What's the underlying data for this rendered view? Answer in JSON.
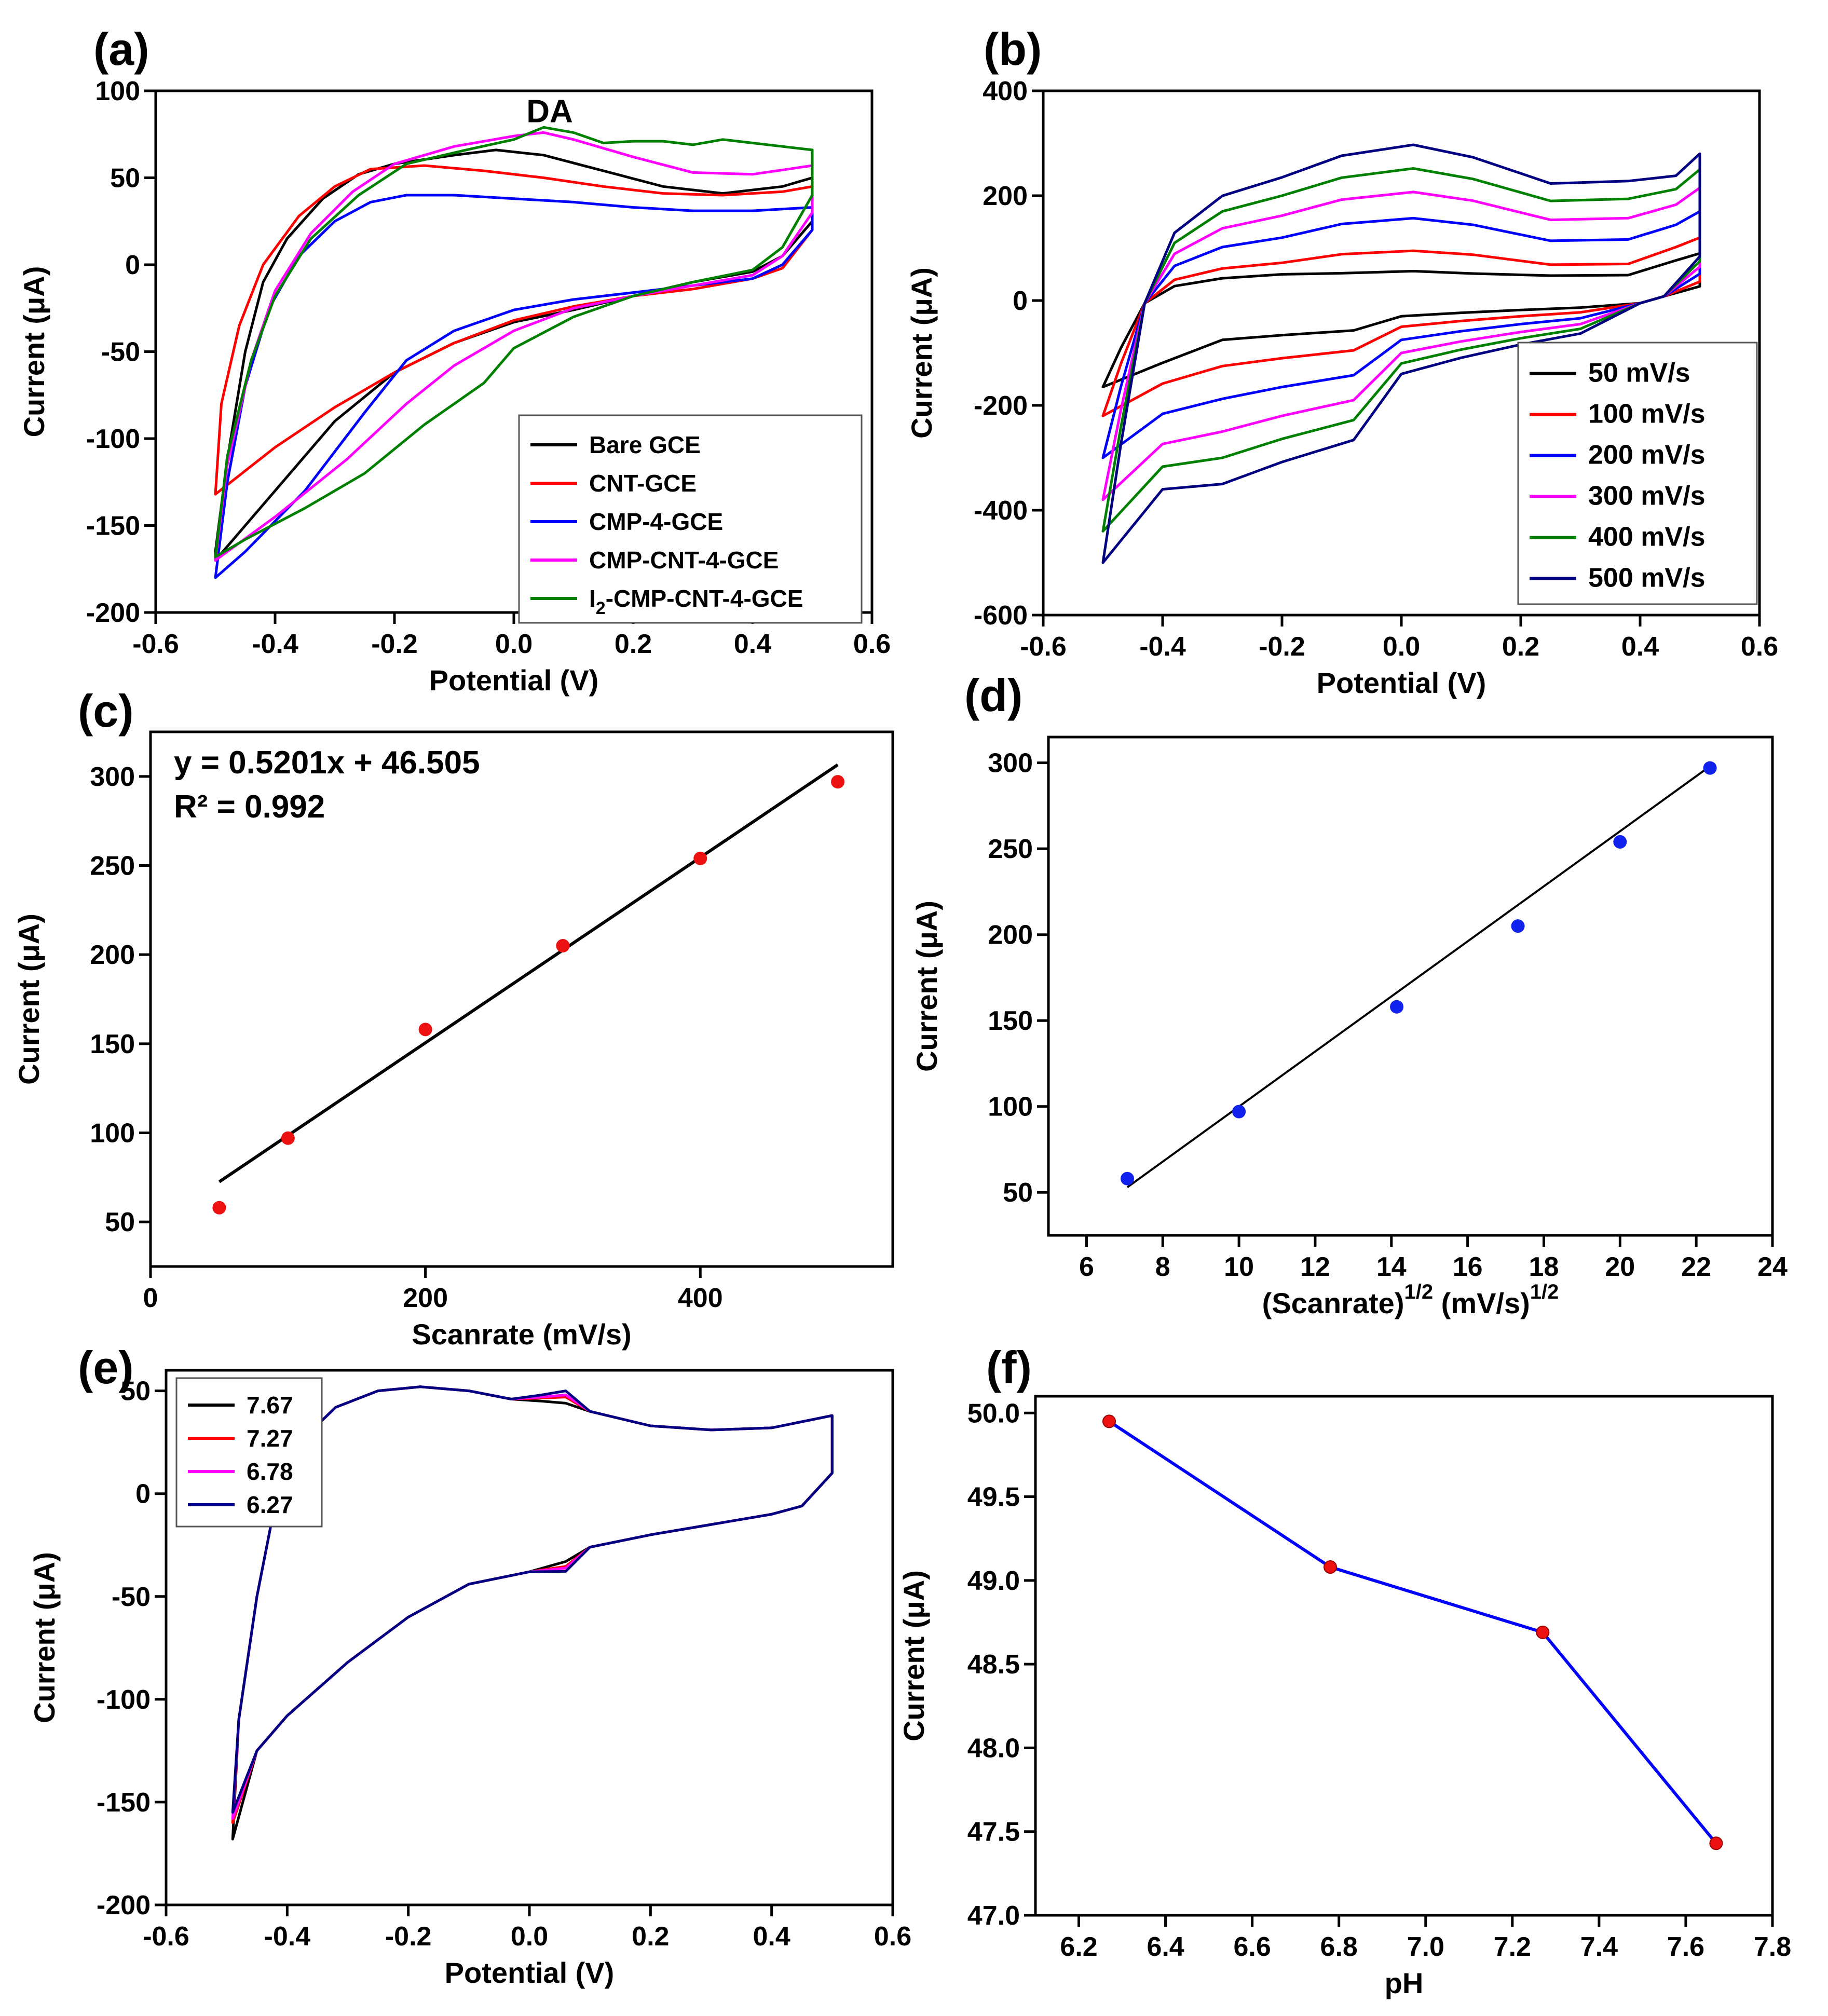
{
  "chart_data": [
    {
      "id": "a",
      "panel_label": "(a)",
      "type": "line",
      "xlabel": "Potential (V)",
      "ylabel": "Current (μA)",
      "xlim": [
        -0.6,
        0.6
      ],
      "ylim": [
        -200,
        100
      ],
      "xticks": [
        "-0.6",
        "-0.4",
        "-0.2",
        "0.0",
        "0.2",
        "0.4",
        "0.6"
      ],
      "yticks": [
        "-200",
        "-150",
        "-100",
        "-50",
        "0",
        "50",
        "100"
      ],
      "annotations": [
        {
          "text": "DA",
          "x": 0.06,
          "y": 82
        }
      ],
      "legend_position": "lower-right",
      "series": [
        {
          "name": "Bare GCE",
          "color": "#000000",
          "points": [
            [
              -0.5,
              -165
            ],
            [
              -0.48,
              -112
            ],
            [
              -0.45,
              -50
            ],
            [
              -0.42,
              -10
            ],
            [
              -0.38,
              15
            ],
            [
              -0.32,
              38
            ],
            [
              -0.26,
              52
            ],
            [
              -0.2,
              58
            ],
            [
              -0.1,
              63
            ],
            [
              -0.03,
              66
            ],
            [
              0.05,
              63
            ],
            [
              0.15,
              54
            ],
            [
              0.25,
              45
            ],
            [
              0.35,
              41
            ],
            [
              0.45,
              45
            ],
            [
              0.5,
              50
            ],
            [
              0.5,
              25
            ],
            [
              0.45,
              5
            ],
            [
              0.4,
              -4
            ],
            [
              0.3,
              -10
            ],
            [
              0.2,
              -18
            ],
            [
              0.1,
              -26
            ],
            [
              0.0,
              -33
            ],
            [
              -0.1,
              -45
            ],
            [
              -0.2,
              -62
            ],
            [
              -0.3,
              -90
            ],
            [
              -0.4,
              -130
            ],
            [
              -0.5,
              -170
            ]
          ]
        },
        {
          "name": "CNT-GCE",
          "color": "#ff0000",
          "points": [
            [
              -0.5,
              -132
            ],
            [
              -0.49,
              -80
            ],
            [
              -0.46,
              -35
            ],
            [
              -0.42,
              0
            ],
            [
              -0.36,
              28
            ],
            [
              -0.3,
              45
            ],
            [
              -0.24,
              55
            ],
            [
              -0.15,
              57
            ],
            [
              -0.05,
              54
            ],
            [
              0.05,
              50
            ],
            [
              0.15,
              45
            ],
            [
              0.25,
              41
            ],
            [
              0.35,
              40
            ],
            [
              0.45,
              42
            ],
            [
              0.5,
              45
            ],
            [
              0.5,
              20
            ],
            [
              0.45,
              -2
            ],
            [
              0.4,
              -8
            ],
            [
              0.3,
              -14
            ],
            [
              0.2,
              -18
            ],
            [
              0.1,
              -24
            ],
            [
              0.0,
              -32
            ],
            [
              -0.1,
              -45
            ],
            [
              -0.2,
              -62
            ],
            [
              -0.3,
              -82
            ],
            [
              -0.4,
              -105
            ],
            [
              -0.5,
              -132
            ]
          ]
        },
        {
          "name": "CMP-4-GCE",
          "color": "#0000ff",
          "points": [
            [
              -0.5,
              -180
            ],
            [
              -0.48,
              -125
            ],
            [
              -0.45,
              -70
            ],
            [
              -0.41,
              -25
            ],
            [
              -0.36,
              5
            ],
            [
              -0.3,
              25
            ],
            [
              -0.24,
              36
            ],
            [
              -0.18,
              40
            ],
            [
              -0.1,
              40
            ],
            [
              0.0,
              38
            ],
            [
              0.1,
              36
            ],
            [
              0.2,
              33
            ],
            [
              0.3,
              31
            ],
            [
              0.4,
              31
            ],
            [
              0.5,
              33
            ],
            [
              0.5,
              20
            ],
            [
              0.45,
              0
            ],
            [
              0.4,
              -8
            ],
            [
              0.3,
              -12
            ],
            [
              0.2,
              -16
            ],
            [
              0.1,
              -20
            ],
            [
              0.0,
              -26
            ],
            [
              -0.1,
              -38
            ],
            [
              -0.18,
              -55
            ],
            [
              -0.25,
              -85
            ],
            [
              -0.35,
              -130
            ],
            [
              -0.45,
              -165
            ],
            [
              -0.5,
              -180
            ]
          ]
        },
        {
          "name": "CMP-CNT-4-GCE",
          "color": "#ff00ff",
          "points": [
            [
              -0.5,
              -170
            ],
            [
              -0.48,
              -115
            ],
            [
              -0.44,
              -55
            ],
            [
              -0.4,
              -15
            ],
            [
              -0.34,
              18
            ],
            [
              -0.27,
              42
            ],
            [
              -0.2,
              58
            ],
            [
              -0.1,
              68
            ],
            [
              0.0,
              74
            ],
            [
              0.05,
              76
            ],
            [
              0.1,
              72
            ],
            [
              0.2,
              62
            ],
            [
              0.3,
              53
            ],
            [
              0.4,
              52
            ],
            [
              0.5,
              57
            ],
            [
              0.5,
              30
            ],
            [
              0.45,
              5
            ],
            [
              0.4,
              -6
            ],
            [
              0.3,
              -12
            ],
            [
              0.2,
              -18
            ],
            [
              0.1,
              -25
            ],
            [
              0.0,
              -38
            ],
            [
              -0.1,
              -58
            ],
            [
              -0.18,
              -80
            ],
            [
              -0.28,
              -112
            ],
            [
              -0.4,
              -145
            ],
            [
              -0.5,
              -170
            ]
          ]
        },
        {
          "name": "I2-CMP-CNT-4-GCE",
          "color": "#008000",
          "points": [
            [
              -0.5,
              -168
            ],
            [
              -0.48,
              -110
            ],
            [
              -0.44,
              -55
            ],
            [
              -0.4,
              -18
            ],
            [
              -0.34,
              15
            ],
            [
              -0.26,
              40
            ],
            [
              -0.18,
              58
            ],
            [
              -0.08,
              66
            ],
            [
              0.0,
              72
            ],
            [
              0.05,
              79
            ],
            [
              0.1,
              76
            ],
            [
              0.15,
              70
            ],
            [
              0.2,
              71
            ],
            [
              0.25,
              71
            ],
            [
              0.3,
              69
            ],
            [
              0.35,
              72
            ],
            [
              0.45,
              68
            ],
            [
              0.5,
              66
            ],
            [
              0.5,
              40
            ],
            [
              0.45,
              10
            ],
            [
              0.4,
              -3
            ],
            [
              0.3,
              -10
            ],
            [
              0.2,
              -18
            ],
            [
              0.1,
              -30
            ],
            [
              0.0,
              -48
            ],
            [
              -0.05,
              -68
            ],
            [
              -0.15,
              -92
            ],
            [
              -0.25,
              -120
            ],
            [
              -0.35,
              -140
            ],
            [
              -0.45,
              -158
            ],
            [
              -0.5,
              -168
            ]
          ]
        }
      ]
    },
    {
      "id": "b",
      "panel_label": "(b)",
      "type": "line",
      "xlabel": "Potential (V)",
      "ylabel": "Current (μA)",
      "xlim": [
        -0.6,
        0.6
      ],
      "ylim": [
        -600,
        400
      ],
      "xticks": [
        "-0.6",
        "-0.4",
        "-0.2",
        "0.0",
        "0.2",
        "0.4",
        "0.6"
      ],
      "yticks": [
        "-600",
        "-400",
        "-200",
        "0",
        "200",
        "400"
      ],
      "legend_position": "lower-right",
      "series": [
        {
          "name": "50   mV/s",
          "color": "#000000",
          "top": 56,
          "bottom": -30,
          "left_neg": -165,
          "right_pos": 90,
          "plateau": 50
        },
        {
          "name": "100 mV/s",
          "color": "#ff0000",
          "top": 95,
          "bottom": -50,
          "left_neg": -220,
          "right_pos": 120,
          "plateau": 72
        },
        {
          "name": "200 mV/s",
          "color": "#0000ff",
          "top": 157,
          "bottom": -75,
          "left_neg": -300,
          "right_pos": 170,
          "plateau": 120
        },
        {
          "name": "300 mV/s",
          "color": "#ff00ff",
          "top": 207,
          "bottom": -100,
          "left_neg": -380,
          "right_pos": 215,
          "plateau": 162
        },
        {
          "name": "400 mV/s",
          "color": "#008000",
          "top": 252,
          "bottom": -120,
          "left_neg": -440,
          "right_pos": 250,
          "plateau": 200
        },
        {
          "name": "500 mV/s",
          "color": "#000080",
          "top": 297,
          "bottom": -140,
          "left_neg": -500,
          "right_pos": 280,
          "plateau": 235
        }
      ]
    },
    {
      "id": "c",
      "panel_label": "(c)",
      "type": "scatter",
      "xlabel": "Scanrate (mV/s)",
      "ylabel": "Current (μA)",
      "xlim": [
        0,
        540
      ],
      "ylim": [
        25,
        325
      ],
      "xticks": [
        "0",
        "200",
        "400"
      ],
      "yticks": [
        "50",
        "100",
        "150",
        "200",
        "250",
        "300"
      ],
      "equation": "y = 0.5201x + 46.505",
      "r_squared": "R² = 0.992",
      "fit": {
        "slope": 0.5201,
        "intercept": 46.505,
        "x_range": [
          50,
          500
        ]
      },
      "x": [
        50,
        100,
        200,
        300,
        400,
        500
      ],
      "y": [
        58,
        97,
        158,
        205,
        254,
        297
      ],
      "marker_color": "#ee1111"
    },
    {
      "id": "d",
      "panel_label": "(d)",
      "type": "scatter",
      "xlabel": "(Scanrate)",
      "xlabel_sup": "1/2",
      "xlabel_units": " (mV/s)",
      "xlabel_units_sup": "1/2",
      "ylabel": "Current (μA)",
      "xlim": [
        5,
        24
      ],
      "ylim": [
        25,
        315
      ],
      "xticks": [
        "6",
        "8",
        "10",
        "12",
        "14",
        "16",
        "18",
        "20",
        "22",
        "24"
      ],
      "yticks": [
        "50",
        "100",
        "150",
        "200",
        "250",
        "300"
      ],
      "fit": {
        "x_range": [
          7.07,
          22.36
        ],
        "y_range": [
          53,
          298
        ]
      },
      "x": [
        7.07,
        10.0,
        14.14,
        17.32,
        20.0,
        22.36
      ],
      "y": [
        58,
        97,
        158,
        205,
        254,
        297
      ],
      "marker_color": "#1122ee"
    },
    {
      "id": "e",
      "panel_label": "(e)",
      "type": "line",
      "xlabel": "Potential (V)",
      "ylabel": "Current (μA)",
      "xlim": [
        -0.6,
        0.6
      ],
      "ylim": [
        -200,
        60
      ],
      "xticks": [
        "-0.6",
        "-0.4",
        "-0.2",
        "0.0",
        "0.2",
        "0.4",
        "0.6"
      ],
      "yticks": [
        "-200",
        "-150",
        "-100",
        "-50",
        "0",
        "50"
      ],
      "legend_position": "top-left",
      "series": [
        {
          "name": "7.67",
          "color": "#000000",
          "bump": 0.0,
          "min": -168
        },
        {
          "name": "7.27",
          "color": "#ff0000",
          "bump": 3.0,
          "min": -160
        },
        {
          "name": "6.78",
          "color": "#ff00ff",
          "bump": 4.0,
          "min": -158
        },
        {
          "name": "6.27",
          "color": "#000080",
          "bump": 6.0,
          "min": -155
        }
      ]
    },
    {
      "id": "f",
      "panel_label": "(f)",
      "type": "line",
      "xlabel": "pH",
      "ylabel": "Current (μA)",
      "xlim": [
        6.1,
        7.8
      ],
      "ylim": [
        47.0,
        50.1
      ],
      "xticks": [
        "6.2",
        "6.4",
        "6.6",
        "6.8",
        "7.0",
        "7.2",
        "7.4",
        "7.6",
        "7.8"
      ],
      "yticks": [
        "47.0",
        "47.5",
        "48.0",
        "48.5",
        "49.0",
        "49.5",
        "50.0"
      ],
      "x": [
        6.27,
        6.78,
        7.27,
        7.67
      ],
      "y": [
        49.95,
        49.08,
        48.69,
        47.43
      ],
      "line_color": "#0000ff",
      "marker_color": "#ee1111"
    }
  ]
}
